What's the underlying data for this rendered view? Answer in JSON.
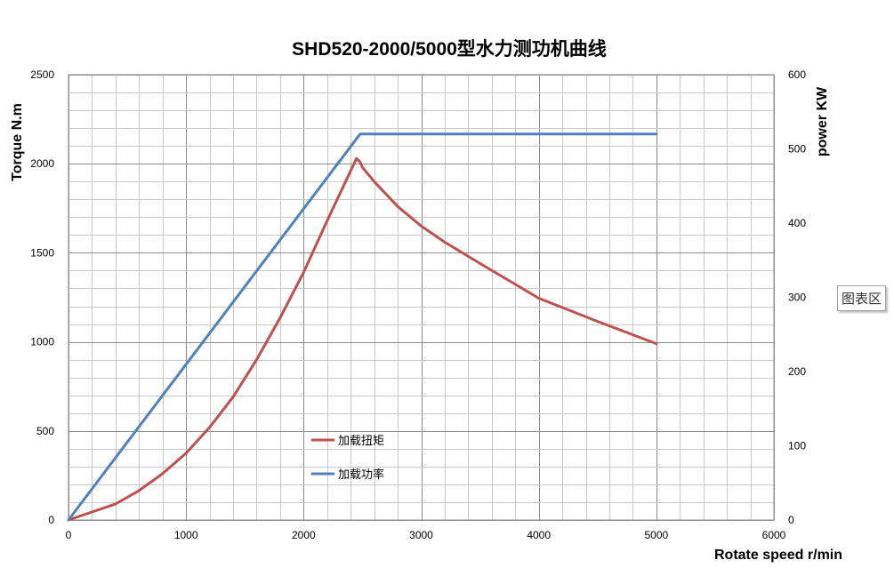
{
  "chart_data": {
    "type": "line",
    "title": "SHD520-2000/5000型水力测功机曲线",
    "xlabel": "Rotate speed r/min",
    "ylabel": "Torque N.m",
    "y2label": "power KW",
    "xlim": [
      0,
      6000
    ],
    "ylim": [
      0,
      2500
    ],
    "y2lim": [
      0,
      600
    ],
    "x_ticks": [
      "0",
      "1000",
      "2000",
      "3000",
      "4000",
      "5000",
      "6000"
    ],
    "y_ticks": [
      "0",
      "500",
      "1000",
      "1500",
      "2000",
      "2500"
    ],
    "y2_ticks": [
      "0",
      "100",
      "200",
      "300",
      "400",
      "500",
      "600"
    ],
    "grid": true,
    "legend_position": "center-left",
    "series": [
      {
        "name": "加载扭矩",
        "axis": "left",
        "color": "#c0504d",
        "x": [
          0,
          200,
          400,
          600,
          800,
          1000,
          1200,
          1400,
          1600,
          1800,
          2000,
          2200,
          2400,
          2450,
          2480,
          2500,
          2600,
          2800,
          3000,
          3200,
          3500,
          4000,
          4500,
          5000
        ],
        "y": [
          0,
          45,
          90,
          165,
          260,
          375,
          520,
          690,
          900,
          1135,
          1390,
          1680,
          1960,
          2030,
          2010,
          1980,
          1900,
          1760,
          1650,
          1560,
          1440,
          1245,
          1115,
          990
        ]
      },
      {
        "name": "加载功率",
        "axis": "right",
        "color": "#4f81bd",
        "x": [
          0,
          2480,
          5000
        ],
        "y": [
          0,
          520,
          520
        ]
      }
    ]
  },
  "overlay": {
    "tooltip": "图表区"
  }
}
